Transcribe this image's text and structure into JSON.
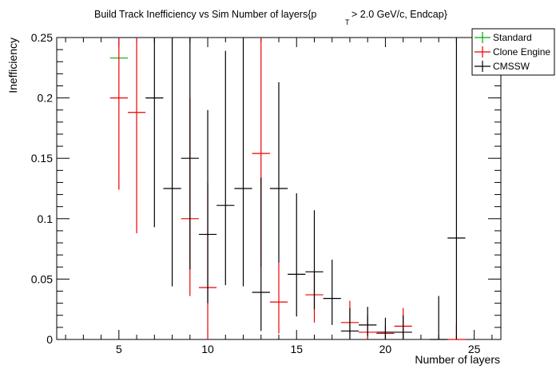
{
  "chart_data": {
    "type": "scatter",
    "title": "Build Track Inefficiency vs Sim Number of layers{p",
    "title_sub": "T",
    "title_suffix": "> 2.0 GeV/c, Endcap}",
    "xlabel": "Number of layers",
    "ylabel": "Inefficiency",
    "xlim": [
      1.5,
      26.5
    ],
    "ylim": [
      0,
      0.25
    ],
    "x_ticks": [
      5,
      10,
      15,
      20,
      25
    ],
    "y_ticks": [
      0,
      0.05,
      0.1,
      0.15,
      0.2,
      0.25
    ],
    "x_tick_labels": [
      "5",
      "10",
      "15",
      "20",
      "25"
    ],
    "y_tick_labels": [
      "0",
      "0.05",
      "0.1",
      "0.15",
      "0.2",
      "0.25"
    ],
    "grid": false,
    "legend_position": "top-right",
    "series": [
      {
        "name": "Standard",
        "color": "#00aa00",
        "points": [
          {
            "x": 5,
            "y": 0.233,
            "lo": 0.233,
            "hi": 0.233
          }
        ]
      },
      {
        "name": "Clone Engine",
        "color": "#ee0000",
        "points": [
          {
            "x": 5,
            "y": 0.2,
            "lo": 0.124,
            "hi": 0.25
          },
          {
            "x": 6,
            "y": 0.188,
            "lo": 0.088,
            "hi": 0.25
          },
          {
            "x": 9,
            "y": 0.1,
            "lo": 0.036,
            "hi": 0.2
          },
          {
            "x": 10,
            "y": 0.043,
            "lo": 0.0,
            "hi": 0.13
          },
          {
            "x": 13,
            "y": 0.154,
            "lo": 0.06,
            "hi": 0.25
          },
          {
            "x": 14,
            "y": 0.031,
            "lo": 0.005,
            "hi": 0.065
          },
          {
            "x": 16,
            "y": 0.037,
            "lo": 0.014,
            "hi": 0.056
          },
          {
            "x": 18,
            "y": 0.014,
            "lo": 0.004,
            "hi": 0.032
          },
          {
            "x": 19,
            "y": 0.006,
            "lo": 0.0,
            "hi": 0.02
          },
          {
            "x": 20,
            "y": 0.005,
            "lo": 0.0,
            "hi": 0.012
          },
          {
            "x": 21,
            "y": 0.011,
            "lo": 0.0,
            "hi": 0.026
          },
          {
            "x": 24,
            "y": 0.0,
            "lo": 0.0,
            "hi": 0.013
          }
        ]
      },
      {
        "name": "CMSSW",
        "color": "#000000",
        "points": [
          {
            "x": 7,
            "y": 0.2,
            "lo": 0.093,
            "hi": 0.25
          },
          {
            "x": 8,
            "y": 0.125,
            "lo": 0.044,
            "hi": 0.25
          },
          {
            "x": 9,
            "y": 0.15,
            "lo": 0.058,
            "hi": 0.25
          },
          {
            "x": 10,
            "y": 0.087,
            "lo": 0.03,
            "hi": 0.19
          },
          {
            "x": 11,
            "y": 0.111,
            "lo": 0.045,
            "hi": 0.239
          },
          {
            "x": 12,
            "y": 0.125,
            "lo": 0.044,
            "hi": 0.25
          },
          {
            "x": 13,
            "y": 0.039,
            "lo": 0.007,
            "hi": 0.134
          },
          {
            "x": 14,
            "y": 0.125,
            "lo": 0.064,
            "hi": 0.213
          },
          {
            "x": 15,
            "y": 0.054,
            "lo": 0.019,
            "hi": 0.121
          },
          {
            "x": 16,
            "y": 0.056,
            "lo": 0.025,
            "hi": 0.107
          },
          {
            "x": 17,
            "y": 0.034,
            "lo": 0.012,
            "hi": 0.066
          },
          {
            "x": 18,
            "y": 0.007,
            "lo": 0.0,
            "hi": 0.026
          },
          {
            "x": 19,
            "y": 0.012,
            "lo": 0.003,
            "hi": 0.027
          },
          {
            "x": 20,
            "y": 0.006,
            "lo": 0.0,
            "hi": 0.018
          },
          {
            "x": 21,
            "y": 0.006,
            "lo": 0.0,
            "hi": 0.02
          },
          {
            "x": 23,
            "y": 0.0,
            "lo": 0.0,
            "hi": 0.036
          },
          {
            "x": 24,
            "y": 0.084,
            "lo": 0.0,
            "hi": 0.25
          }
        ]
      }
    ]
  }
}
